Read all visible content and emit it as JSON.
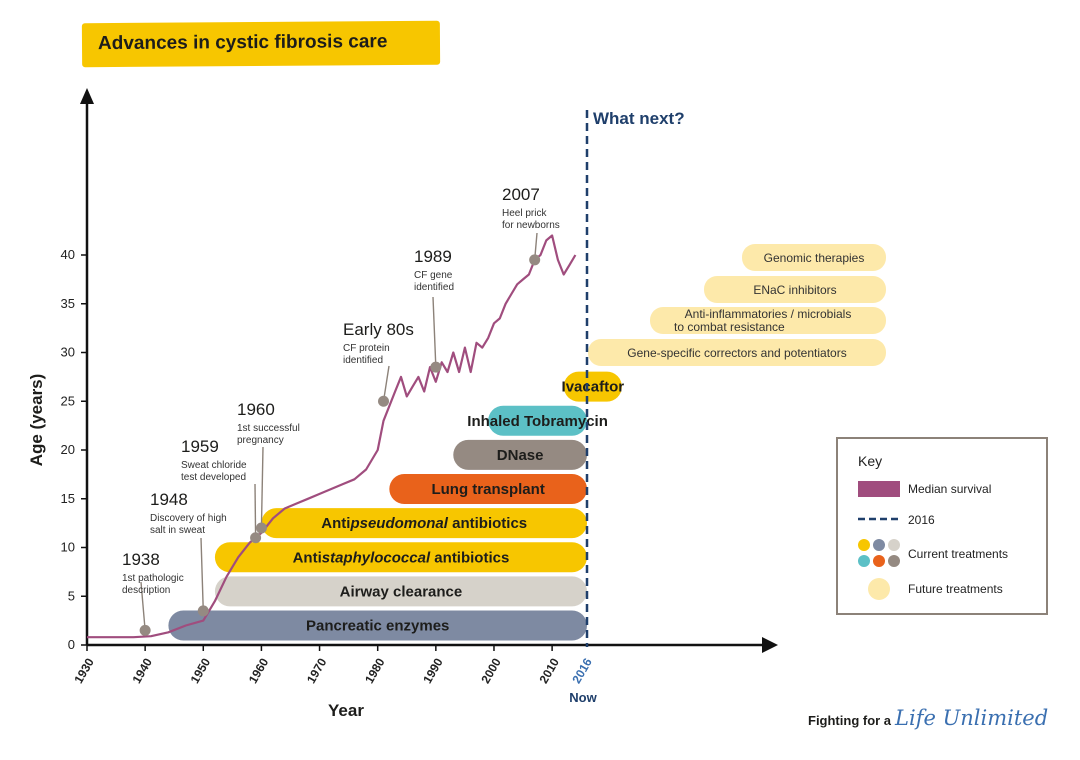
{
  "title": "Advances in cystic fibrosis care",
  "colors": {
    "current_yellow": "#f7c600",
    "current_grey": "#d6d2ca",
    "current_slate": "#7e8aa2",
    "current_teal": "#5cc0c6",
    "current_orange": "#e9621b",
    "current_taupe": "#958a82",
    "future": "#fde9aa",
    "survival": "#a04d7e",
    "line_2016": "#1f3f6b",
    "milestone_dot": "#958a82"
  },
  "chart_data": {
    "type": "line",
    "xlabel": "Year",
    "ylabel": "Age (years)",
    "xlim": [
      1930,
      2016
    ],
    "ylim": [
      0,
      40
    ],
    "x_ticks": [
      1930,
      1940,
      1950,
      1960,
      1970,
      1980,
      1990,
      2000,
      2010
    ],
    "y_ticks": [
      0,
      5,
      10,
      15,
      20,
      25,
      30,
      35,
      40
    ],
    "x_marker": {
      "value": 2016,
      "label": "2016",
      "sublabel": "Now"
    },
    "what_next_label": "What next?",
    "series": [
      {
        "name": "Median survival",
        "x": [
          1930,
          1938,
          1941,
          1944,
          1947,
          1950,
          1952,
          1954,
          1956,
          1958,
          1960,
          1962,
          1964,
          1966,
          1968,
          1970,
          1972,
          1974,
          1976,
          1978,
          1980,
          1981,
          1983,
          1984,
          1985,
          1986,
          1987,
          1988,
          1989,
          1990,
          1991,
          1992,
          1993,
          1994,
          1995,
          1996,
          1997,
          1998,
          1999,
          2000,
          2001,
          2002,
          2003,
          2004,
          2005,
          2006,
          2007,
          2008,
          2009,
          2010,
          2011,
          2012,
          2013,
          2014
        ],
        "y": [
          0.8,
          0.8,
          0.9,
          1.3,
          2.0,
          2.5,
          4.5,
          7.0,
          9.0,
          10.5,
          11.5,
          13.0,
          14.0,
          14.5,
          15.0,
          15.5,
          16.0,
          16.5,
          17.0,
          18.0,
          20.0,
          23.0,
          26.0,
          27.5,
          25.5,
          26.5,
          27.5,
          26.0,
          28.5,
          27.0,
          29.0,
          28.0,
          30.0,
          28.0,
          30.5,
          28.0,
          31.0,
          30.5,
          31.5,
          33.0,
          33.5,
          35.0,
          36.0,
          37.0,
          37.5,
          38.0,
          39.5,
          40.0,
          41.5,
          42.0,
          39.5,
          38.0,
          39.0,
          40.0
        ]
      }
    ],
    "milestones": [
      {
        "x": 1940,
        "y": 1.5,
        "label": "1938",
        "desc": [
          "1st pathologic",
          "description"
        ]
      },
      {
        "x": 1950,
        "y": 3.5,
        "label": "1948",
        "desc": [
          "Discovery of high",
          "salt in sweat"
        ]
      },
      {
        "x": 1959,
        "y": 11.0,
        "label": "1959",
        "desc": [
          "Sweat chloride",
          "test developed"
        ]
      },
      {
        "x": 1960,
        "y": 12.0,
        "label": "1960",
        "desc": [
          "1st successful",
          "pregnancy"
        ]
      },
      {
        "x": 1981,
        "y": 25.0,
        "label": "Early 80s",
        "desc": [
          "CF protein",
          "identified"
        ]
      },
      {
        "x": 1990,
        "y": 28.5,
        "label": "1989",
        "desc": [
          "CF gene",
          "identified"
        ]
      },
      {
        "x": 2007,
        "y": 39.5,
        "label": "2007",
        "desc": [
          "Heel prick",
          "for newborns"
        ]
      }
    ],
    "treatments": [
      {
        "label": "Pancreatic enzymes",
        "start": 1944,
        "end": 2016,
        "y": 2,
        "color": "#7e8aa2",
        "status": "current"
      },
      {
        "label": "Airway clearance",
        "start": 1952,
        "end": 2016,
        "y": 5.5,
        "color": "#d6d2ca",
        "status": "current"
      },
      {
        "label_parts": [
          "Anti",
          "staphylococcal",
          " antibiotics"
        ],
        "start": 1952,
        "end": 2016,
        "y": 9,
        "color": "#f7c600",
        "status": "current"
      },
      {
        "label_parts": [
          "Anti",
          "pseudomonal",
          " antibiotics"
        ],
        "start": 1960,
        "end": 2016,
        "y": 12.5,
        "color": "#f7c600",
        "status": "current"
      },
      {
        "label": "Lung transplant",
        "start": 1982,
        "end": 2016,
        "y": 16,
        "color": "#e9621b",
        "status": "current"
      },
      {
        "label": "DNase",
        "start": 1993,
        "end": 2016,
        "y": 19.5,
        "color": "#958a82",
        "status": "current"
      },
      {
        "label": "Inhaled Tobramycin",
        "start": 1999,
        "end": 2016,
        "y": 23,
        "color": "#5cc0c6",
        "status": "current"
      },
      {
        "label": "Ivacaftor",
        "start": 2012,
        "end": 2022,
        "y": 26.5,
        "color": "#f7c600",
        "status": "current"
      }
    ],
    "future_treatments": [
      {
        "label": "Genomic therapies"
      },
      {
        "label": "ENaC inhibitors"
      },
      {
        "lines": [
          "Anti-inflammatories / microbials",
          "to combat resistance"
        ]
      },
      {
        "label": "Gene-specific correctors and potentiators"
      }
    ],
    "legend": {
      "title": "Key",
      "position": "right",
      "items": [
        {
          "label": "Median survival",
          "kind": "swatch"
        },
        {
          "label": "2016",
          "kind": "dashed"
        },
        {
          "label": "Current treatments",
          "kind": "dots"
        },
        {
          "label": "Future treatments",
          "kind": "circle"
        }
      ]
    }
  },
  "footer": {
    "prefix": "Fighting for a",
    "brand": "Life Unlimited"
  }
}
